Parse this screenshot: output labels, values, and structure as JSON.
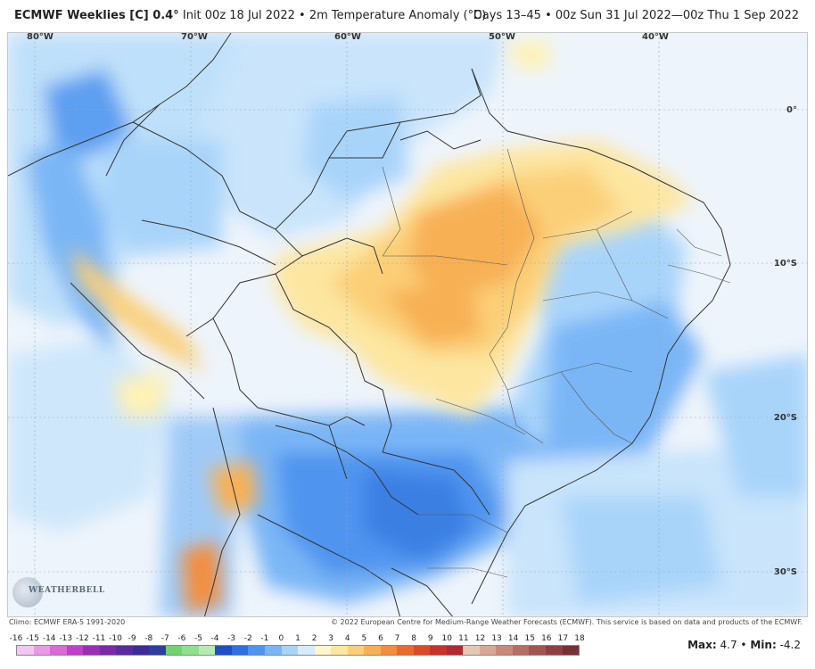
{
  "header": {
    "model_title": "ECMWF Weeklies [C] 0.4°",
    "init": "Init 00z 18 Jul 2022",
    "separator": "•",
    "field": "2m Temperature Anomaly (°C)",
    "days": "Days 13–45",
    "valid": "00z Sun 31 Jul 2022—00z Thu 1 Sep 2022"
  },
  "map": {
    "lon_labels": [
      "80°W",
      "70°W",
      "60°W",
      "50°W",
      "40°W"
    ],
    "lat_labels": [
      "0°",
      "10°S",
      "20°S",
      "30°S"
    ]
  },
  "logo": {
    "text": "WEATHERBELL",
    "icon": "weatherbell-logo"
  },
  "footer": {
    "climo": "Climo: ECMWF ERA-5 1991-2020",
    "copyright": "© 2022 European Centre for Medium-Range Weather Forecasts (ECMWF). This service is based on data and products of the ECMWF."
  },
  "colorbar": {
    "ticks": [
      "-16",
      "-15",
      "-14",
      "-13",
      "-12",
      "-11",
      "-10",
      "-9",
      "-8",
      "-7",
      "-6",
      "-5",
      "-4",
      "-3",
      "-2",
      "-1",
      "0",
      "1",
      "2",
      "3",
      "4",
      "5",
      "6",
      "7",
      "8",
      "9",
      "10",
      "11",
      "12",
      "13",
      "14",
      "15",
      "16",
      "17",
      "18"
    ],
    "colors": [
      "#f4c6f0",
      "#e89ae6",
      "#d86bd6",
      "#c040c8",
      "#9b2fb4",
      "#7a2aa6",
      "#5b2aa0",
      "#3c2c96",
      "#2c3f9e",
      "#6fd46f",
      "#8fe08c",
      "#b6ecb0",
      "#1f4fc4",
      "#2f6fe0",
      "#4f94ef",
      "#7ab6f6",
      "#a9d4fa",
      "#d6ebfd",
      "#fff7cc",
      "#fde6a0",
      "#fbcf78",
      "#f8b055",
      "#f48d3e",
      "#ea6a2e",
      "#dc4a26",
      "#c9322a",
      "#b02a30",
      "#e6c7b5",
      "#d7a894",
      "#c78a78",
      "#b66e62",
      "#a35450",
      "#8f3f44",
      "#772f3a"
    ],
    "heading": "2m Temperature Anomaly"
  },
  "stats": {
    "max_label": "Max",
    "max_value": "4.7",
    "sep": "•",
    "min_label": "Min",
    "min_value": "-4.2"
  }
}
